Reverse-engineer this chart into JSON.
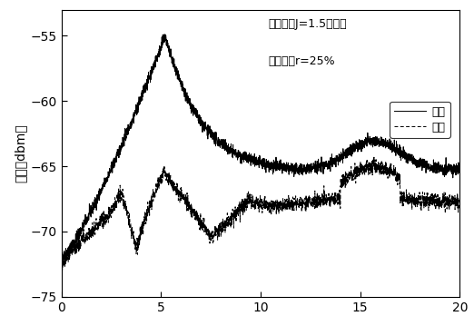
{
  "ylabel": "功率［dbm］",
  "xlim": [
    0,
    20
  ],
  "ylim": [
    -75,
    -53
  ],
  "yticks": [
    -75,
    -70,
    -65,
    -60,
    -55
  ],
  "xticks": [
    0,
    5,
    10,
    15,
    20
  ],
  "annotation_line1": "偏置电流J=1.5倍阙值",
  "annotation_line2": "反馈强度r=25%",
  "legend_signal": "信号",
  "legend_noise": "噪声",
  "line_color": "#000000",
  "background_color": "#ffffff"
}
